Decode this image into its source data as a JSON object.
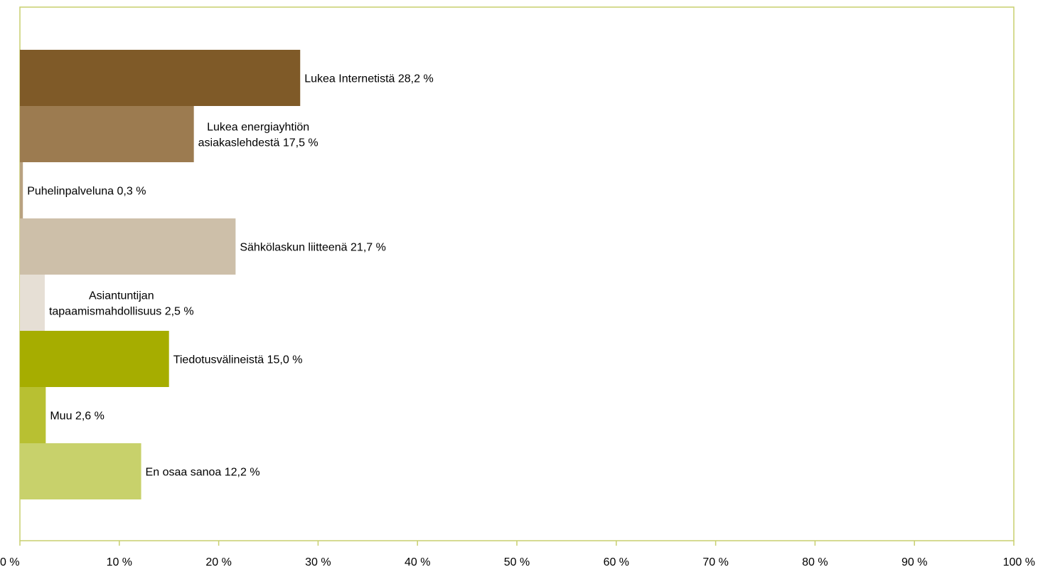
{
  "chart_data": {
    "type": "bar",
    "orientation": "horizontal",
    "categories": [
      "Lukea Internetistä",
      "Lukea energiayhtiön asiakaslehdestä",
      "Puhelinpalveluna",
      "Sähkölaskun liitteenä",
      "Asiantuntijan tapaamismahdollisuus",
      "Tiedotusvälineistä",
      "Muu",
      "En osaa sanoa"
    ],
    "values": [
      28.2,
      17.5,
      0.3,
      21.7,
      2.5,
      15.0,
      2.6,
      12.2
    ],
    "data_labels": [
      [
        "Lukea Internetistä 28,2 %"
      ],
      [
        "Lukea energiayhtiön",
        "asiakaslehdestä 17,5 %"
      ],
      [
        "Puhelinpalveluna 0,3 %"
      ],
      [
        "Sähkölaskun liitteenä 21,7 %"
      ],
      [
        "Asiantuntijan",
        "tapaamismahdollisuus 2,5 %"
      ],
      [
        "Tiedotusvälineistä 15,0 %"
      ],
      [
        "Muu 2,6 %"
      ],
      [
        "En osaa sanoa 12,2 %"
      ]
    ],
    "colors": [
      "#7f5a28",
      "#9c7b50",
      "#b9a281",
      "#cdbfa9",
      "#e6dfd5",
      "#a6ad00",
      "#b8c032",
      "#c8d16b"
    ],
    "xlim": [
      0,
      100
    ],
    "x_ticks": [
      "0 %",
      "10 %",
      "20 %",
      "30 %",
      "40 %",
      "50 %",
      "60 %",
      "70 %",
      "80 %",
      "90 %",
      "100 %"
    ],
    "grid": false,
    "frame_color": "#c8cf6e",
    "title": "",
    "xlabel": "",
    "ylabel": ""
  }
}
